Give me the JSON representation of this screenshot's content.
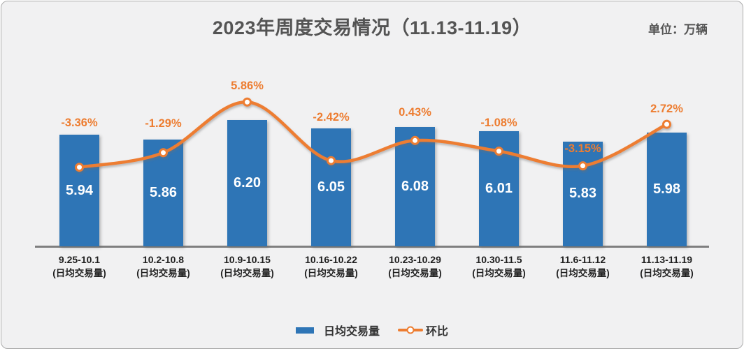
{
  "title": "2023年周度交易情况（11.13-11.19）",
  "unit_label": "单位：万辆",
  "chart_data": {
    "type": "bar",
    "subtype": "combo-bar-line",
    "title": "2023年周度交易情况（11.13-11.19）",
    "unit": "万辆",
    "categories": [
      "9.25-10.1",
      "10.2-10.8",
      "10.9-10.15",
      "10.16-10.22",
      "10.23-10.29",
      "10.30-11.5",
      "11.6-11.12",
      "11.13-11.19"
    ],
    "category_note": "(日均交易量)",
    "series": [
      {
        "name": "日均交易量",
        "type": "bar",
        "color": "#2E75B6",
        "values": [
          5.94,
          5.86,
          6.2,
          6.05,
          6.08,
          6.01,
          5.83,
          5.98
        ],
        "display_labels": [
          "5.94",
          "5.86",
          "6.20",
          "6.05",
          "6.08",
          "6.01",
          "5.83",
          "5.98"
        ]
      },
      {
        "name": "环比",
        "type": "line",
        "color": "#ED7D31",
        "unit": "percent",
        "values": [
          -3.36,
          -1.29,
          5.86,
          -2.42,
          0.43,
          -1.08,
          -3.15,
          2.72
        ],
        "display_labels": [
          "-3.36%",
          "-1.29%",
          "5.86%",
          "-2.42%",
          "0.43%",
          "-1.08%",
          "-3.15%",
          "2.72%"
        ]
      }
    ],
    "legend": {
      "position": "bottom",
      "items": [
        "日均交易量",
        "环比"
      ]
    },
    "bar_axis_implied_range": [
      4.0,
      6.4
    ],
    "grid": false
  },
  "colors": {
    "bar": "#2E75B6",
    "line": "#ED7D31",
    "background": "#F1F1F2",
    "border": "#ACACAC",
    "title_text": "#545454",
    "axis_line": "#7F7F7F",
    "bar_value_text": "#FFFFFF",
    "category_text": "#1F1F1F"
  }
}
